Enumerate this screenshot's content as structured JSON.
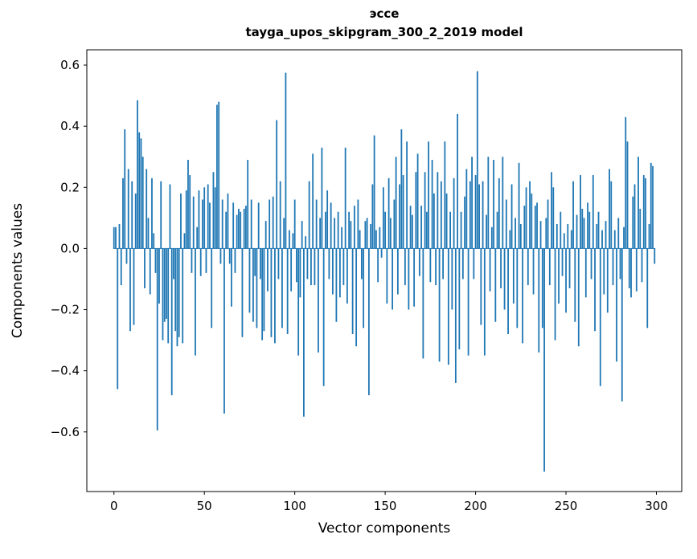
{
  "figure": {
    "background": "#ffffff",
    "bar_color": "#1f77b4",
    "axis_color": "#000000"
  },
  "chart_data": {
    "type": "bar",
    "title": "эссе",
    "subtitle": "tayga_upos_skipgram_300_2_2019 model",
    "xlabel": "Vector components",
    "ylabel": "Components values",
    "xlim": [
      -15,
      314
    ],
    "ylim": [
      -0.795,
      0.65
    ],
    "xticks": [
      0,
      50,
      100,
      150,
      200,
      250,
      300
    ],
    "yticks": [
      -0.6,
      -0.4,
      -0.2,
      0.0,
      0.2,
      0.4,
      0.6
    ],
    "grid": false,
    "legend": null,
    "x_start": 0,
    "values": [
      0.07,
      0.07,
      -0.46,
      0.08,
      -0.12,
      0.23,
      0.39,
      -0.05,
      0.26,
      -0.27,
      0.22,
      -0.25,
      0.18,
      0.485,
      0.38,
      0.36,
      0.3,
      -0.13,
      0.26,
      0.1,
      -0.15,
      0.23,
      0.05,
      -0.08,
      -0.595,
      -0.18,
      0.22,
      -0.3,
      -0.24,
      -0.23,
      -0.31,
      0.21,
      -0.48,
      -0.1,
      -0.27,
      -0.32,
      -0.29,
      0.18,
      -0.31,
      0.05,
      0.19,
      0.29,
      0.24,
      -0.08,
      0.17,
      -0.35,
      0.07,
      0.19,
      -0.09,
      0.16,
      0.2,
      -0.08,
      0.21,
      0.15,
      -0.26,
      0.25,
      0.2,
      0.47,
      0.48,
      -0.05,
      0.16,
      -0.54,
      0.12,
      0.18,
      -0.05,
      -0.19,
      0.15,
      -0.08,
      0.11,
      0.13,
      0.12,
      -0.29,
      0.13,
      0.14,
      0.29,
      -0.21,
      0.16,
      -0.24,
      -0.09,
      -0.26,
      0.15,
      -0.1,
      -0.3,
      -0.27,
      0.09,
      -0.14,
      0.16,
      -0.29,
      0.17,
      -0.31,
      0.42,
      -0.1,
      0.22,
      -0.26,
      0.1,
      0.575,
      -0.28,
      0.06,
      -0.14,
      0.05,
      0.16,
      -0.11,
      -0.35,
      -0.16,
      0.09,
      -0.55,
      0.04,
      -0.1,
      0.22,
      -0.12,
      0.31,
      -0.12,
      0.16,
      -0.34,
      0.1,
      0.33,
      -0.45,
      0.12,
      0.19,
      -0.1,
      0.15,
      -0.15,
      0.1,
      -0.24,
      0.12,
      -0.16,
      0.07,
      -0.12,
      0.33,
      -0.18,
      0.12,
      0.09,
      -0.28,
      0.14,
      -0.32,
      0.16,
      0.06,
      -0.1,
      -0.26,
      0.09,
      0.1,
      -0.48,
      0.08,
      0.21,
      0.37,
      0.06,
      -0.11,
      0.07,
      -0.03,
      0.2,
      0.12,
      -0.18,
      0.23,
      0.1,
      -0.2,
      0.16,
      0.3,
      -0.15,
      0.21,
      0.39,
      0.24,
      -0.12,
      0.35,
      -0.2,
      0.14,
      0.11,
      -0.19,
      0.25,
      0.31,
      -0.09,
      0.14,
      -0.36,
      0.25,
      0.12,
      0.35,
      -0.11,
      0.29,
      0.18,
      -0.12,
      0.25,
      -0.37,
      0.22,
      -0.1,
      0.35,
      0.18,
      -0.38,
      0.12,
      -0.2,
      0.23,
      -0.44,
      0.44,
      -0.33,
      0.12,
      -0.1,
      0.17,
      0.26,
      -0.35,
      0.22,
      0.3,
      -0.1,
      0.24,
      0.58,
      0.21,
      -0.25,
      0.22,
      -0.35,
      0.11,
      0.3,
      -0.14,
      0.07,
      0.29,
      -0.24,
      0.12,
      0.23,
      -0.13,
      0.3,
      -0.2,
      0.16,
      -0.28,
      0.06,
      0.21,
      -0.18,
      0.1,
      -0.26,
      0.28,
      0.08,
      -0.31,
      0.14,
      0.2,
      -0.12,
      0.22,
      0.18,
      -0.15,
      0.14,
      0.15,
      -0.34,
      0.09,
      -0.26,
      -0.73,
      0.1,
      0.16,
      -0.12,
      0.25,
      0.2,
      -0.3,
      0.08,
      -0.18,
      0.12,
      -0.09,
      0.05,
      -0.21,
      0.08,
      -0.13,
      0.06,
      0.22,
      -0.24,
      0.11,
      -0.32,
      0.24,
      0.13,
      0.1,
      -0.16,
      0.15,
      0.12,
      -0.1,
      0.24,
      -0.27,
      0.08,
      0.12,
      -0.45,
      0.06,
      -0.15,
      0.09,
      -0.21,
      0.26,
      0.22,
      -0.12,
      0.06,
      -0.37,
      0.1,
      -0.1,
      -0.5,
      0.07,
      0.43,
      0.35,
      -0.13,
      -0.16,
      0.17,
      0.21,
      -0.14,
      0.3,
      0.13,
      -0.11,
      0.24,
      0.23,
      -0.26,
      0.08,
      0.28,
      0.27,
      -0.05
    ]
  }
}
